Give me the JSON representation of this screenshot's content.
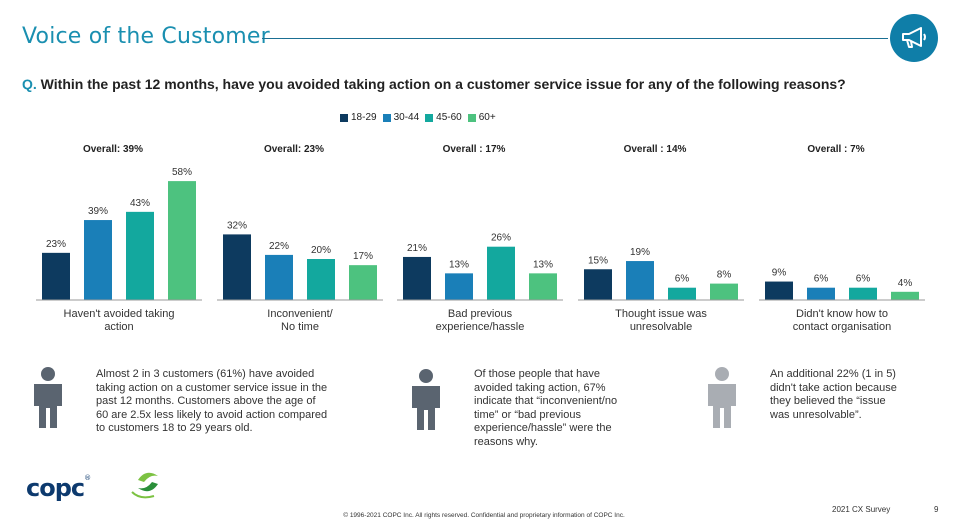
{
  "header": {
    "title": "Voice of the Customer",
    "badge_icon": "megaphone-icon"
  },
  "question": {
    "prefix": "Q.",
    "text": "Within the past 12 months, have you avoided taking action on a customer service issue for any of the following reasons?"
  },
  "colors": [
    "#0d3a5f",
    "#1a7fb8",
    "#13a89e",
    "#4dc27f"
  ],
  "chart_data": {
    "type": "bar",
    "series": [
      {
        "name": "18-29",
        "values": [
          23,
          32,
          21,
          15,
          9
        ]
      },
      {
        "name": "30-44",
        "values": [
          39,
          22,
          13,
          19,
          6
        ]
      },
      {
        "name": "45-60",
        "values": [
          43,
          20,
          26,
          6,
          6
        ]
      },
      {
        "name": "60+",
        "values": [
          58,
          17,
          13,
          8,
          4
        ]
      }
    ],
    "categories": [
      [
        "Haven't avoided taking",
        "action"
      ],
      [
        "Inconvenient/",
        "No time"
      ],
      [
        "Bad previous",
        "experience/hassle"
      ],
      [
        "Thought issue was",
        "unresolvable"
      ],
      [
        "Didn't know how to",
        "contact organisation"
      ]
    ],
    "overall": [
      "Overall: 39%",
      "Overall: 23%",
      "Overall : 17%",
      "Overall : 14%",
      "Overall : 7%"
    ],
    "value_suffix": "%",
    "legend_placement": "top-center",
    "ylim": [
      0,
      60
    ],
    "grid": false
  },
  "callouts": [
    {
      "text": [
        "Almost 2 in 3 customers (61%) have avoided",
        "taking action on a customer service issue in the",
        "past 12 months. Customers above the age of",
        "60 are 2.5x less likely to avoid action compared",
        "to customers 18 to 29 years old."
      ]
    },
    {
      "text": [
        "Of those people that have",
        "avoided taking action, 67%",
        "indicate that “inconvenient/no",
        "time” or “bad previous",
        "experience/hassle” were the",
        "reasons why."
      ]
    },
    {
      "text": [
        "An additional 22% (1 in 5)",
        "didn't take action because",
        "they believed the “issue",
        "was unresolvable”."
      ]
    }
  ],
  "footer": {
    "logo": "copc",
    "logo_tm": "®",
    "copyright": "© 1996-2021 COPC Inc. All rights reserved. Confidential and proprietary information of COPC Inc.",
    "survey": "2021 CX Survey",
    "page": "9"
  }
}
